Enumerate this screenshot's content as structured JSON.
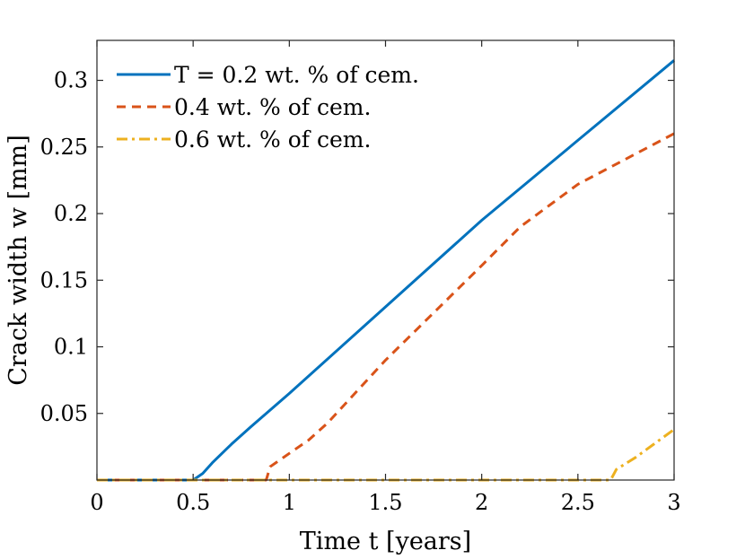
{
  "chart_data": {
    "type": "line",
    "title": "",
    "xlabel": "Time t [years]",
    "ylabel": "Crack width w [mm]",
    "xlim": [
      0,
      3
    ],
    "ylim": [
      0,
      0.33
    ],
    "xticks": [
      0,
      0.5,
      1,
      1.5,
      2,
      2.5,
      3
    ],
    "xtick_labels": [
      "0",
      "0.5",
      "1",
      "1.5",
      "2",
      "2.5",
      "3"
    ],
    "yticks": [
      0.05,
      0.1,
      0.15,
      0.2,
      0.25,
      0.3
    ],
    "ytick_labels": [
      "0.05",
      "0.1",
      "0.15",
      "0.2",
      "0.25",
      "0.3"
    ],
    "grid": false,
    "legend_position": "top-left",
    "series": [
      {
        "name": "T = 0.2 wt. % of cem.",
        "color": "#0072BD",
        "style": "solid",
        "x": [
          0,
          0.5,
          0.55,
          0.6,
          0.7,
          0.8,
          1.0,
          1.5,
          2.0,
          2.5,
          3.0
        ],
        "y": [
          0,
          0,
          0.005,
          0.013,
          0.027,
          0.04,
          0.065,
          0.13,
          0.195,
          0.255,
          0.315
        ]
      },
      {
        "name": "0.4 wt. % of cem.",
        "color": "#D95319",
        "style": "dashed",
        "x": [
          0,
          0.88,
          0.9,
          1.0,
          1.1,
          1.2,
          1.5,
          2.0,
          2.2,
          2.5,
          3.0
        ],
        "y": [
          0,
          0,
          0.01,
          0.02,
          0.03,
          0.043,
          0.09,
          0.161,
          0.19,
          0.222,
          0.26
        ]
      },
      {
        "name": "0.6 wt. % of cem.",
        "color": "#EDB120",
        "style": "dashdot",
        "x": [
          0,
          2.67,
          2.7,
          2.8,
          3.0
        ],
        "y": [
          0,
          0,
          0.008,
          0.017,
          0.038
        ]
      }
    ]
  }
}
